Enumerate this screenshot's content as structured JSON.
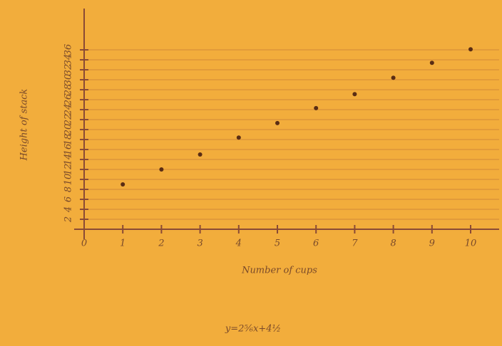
{
  "chart_data": {
    "type": "scatter",
    "x_label": "Number of cups",
    "y_label": "Height of stack",
    "annotation": "y=2⅚x+4½",
    "x": [
      1,
      2,
      3,
      4,
      5,
      6,
      7,
      8,
      9,
      10
    ],
    "values": [
      9,
      12,
      15,
      18.4,
      21.3,
      24.3,
      27.1,
      30.4,
      33.4,
      36.1
    ],
    "color": "#5a2d14",
    "xlim": [
      0,
      10
    ],
    "xticks": [
      0,
      1,
      2,
      3,
      4,
      5,
      6,
      7,
      8,
      9,
      10
    ],
    "ylim": [
      0,
      38
    ],
    "yticks": [
      2,
      4,
      6,
      8,
      10,
      12,
      14,
      16,
      18,
      20,
      22,
      24,
      26,
      28,
      30,
      32,
      34,
      36
    ],
    "grid": true
  }
}
